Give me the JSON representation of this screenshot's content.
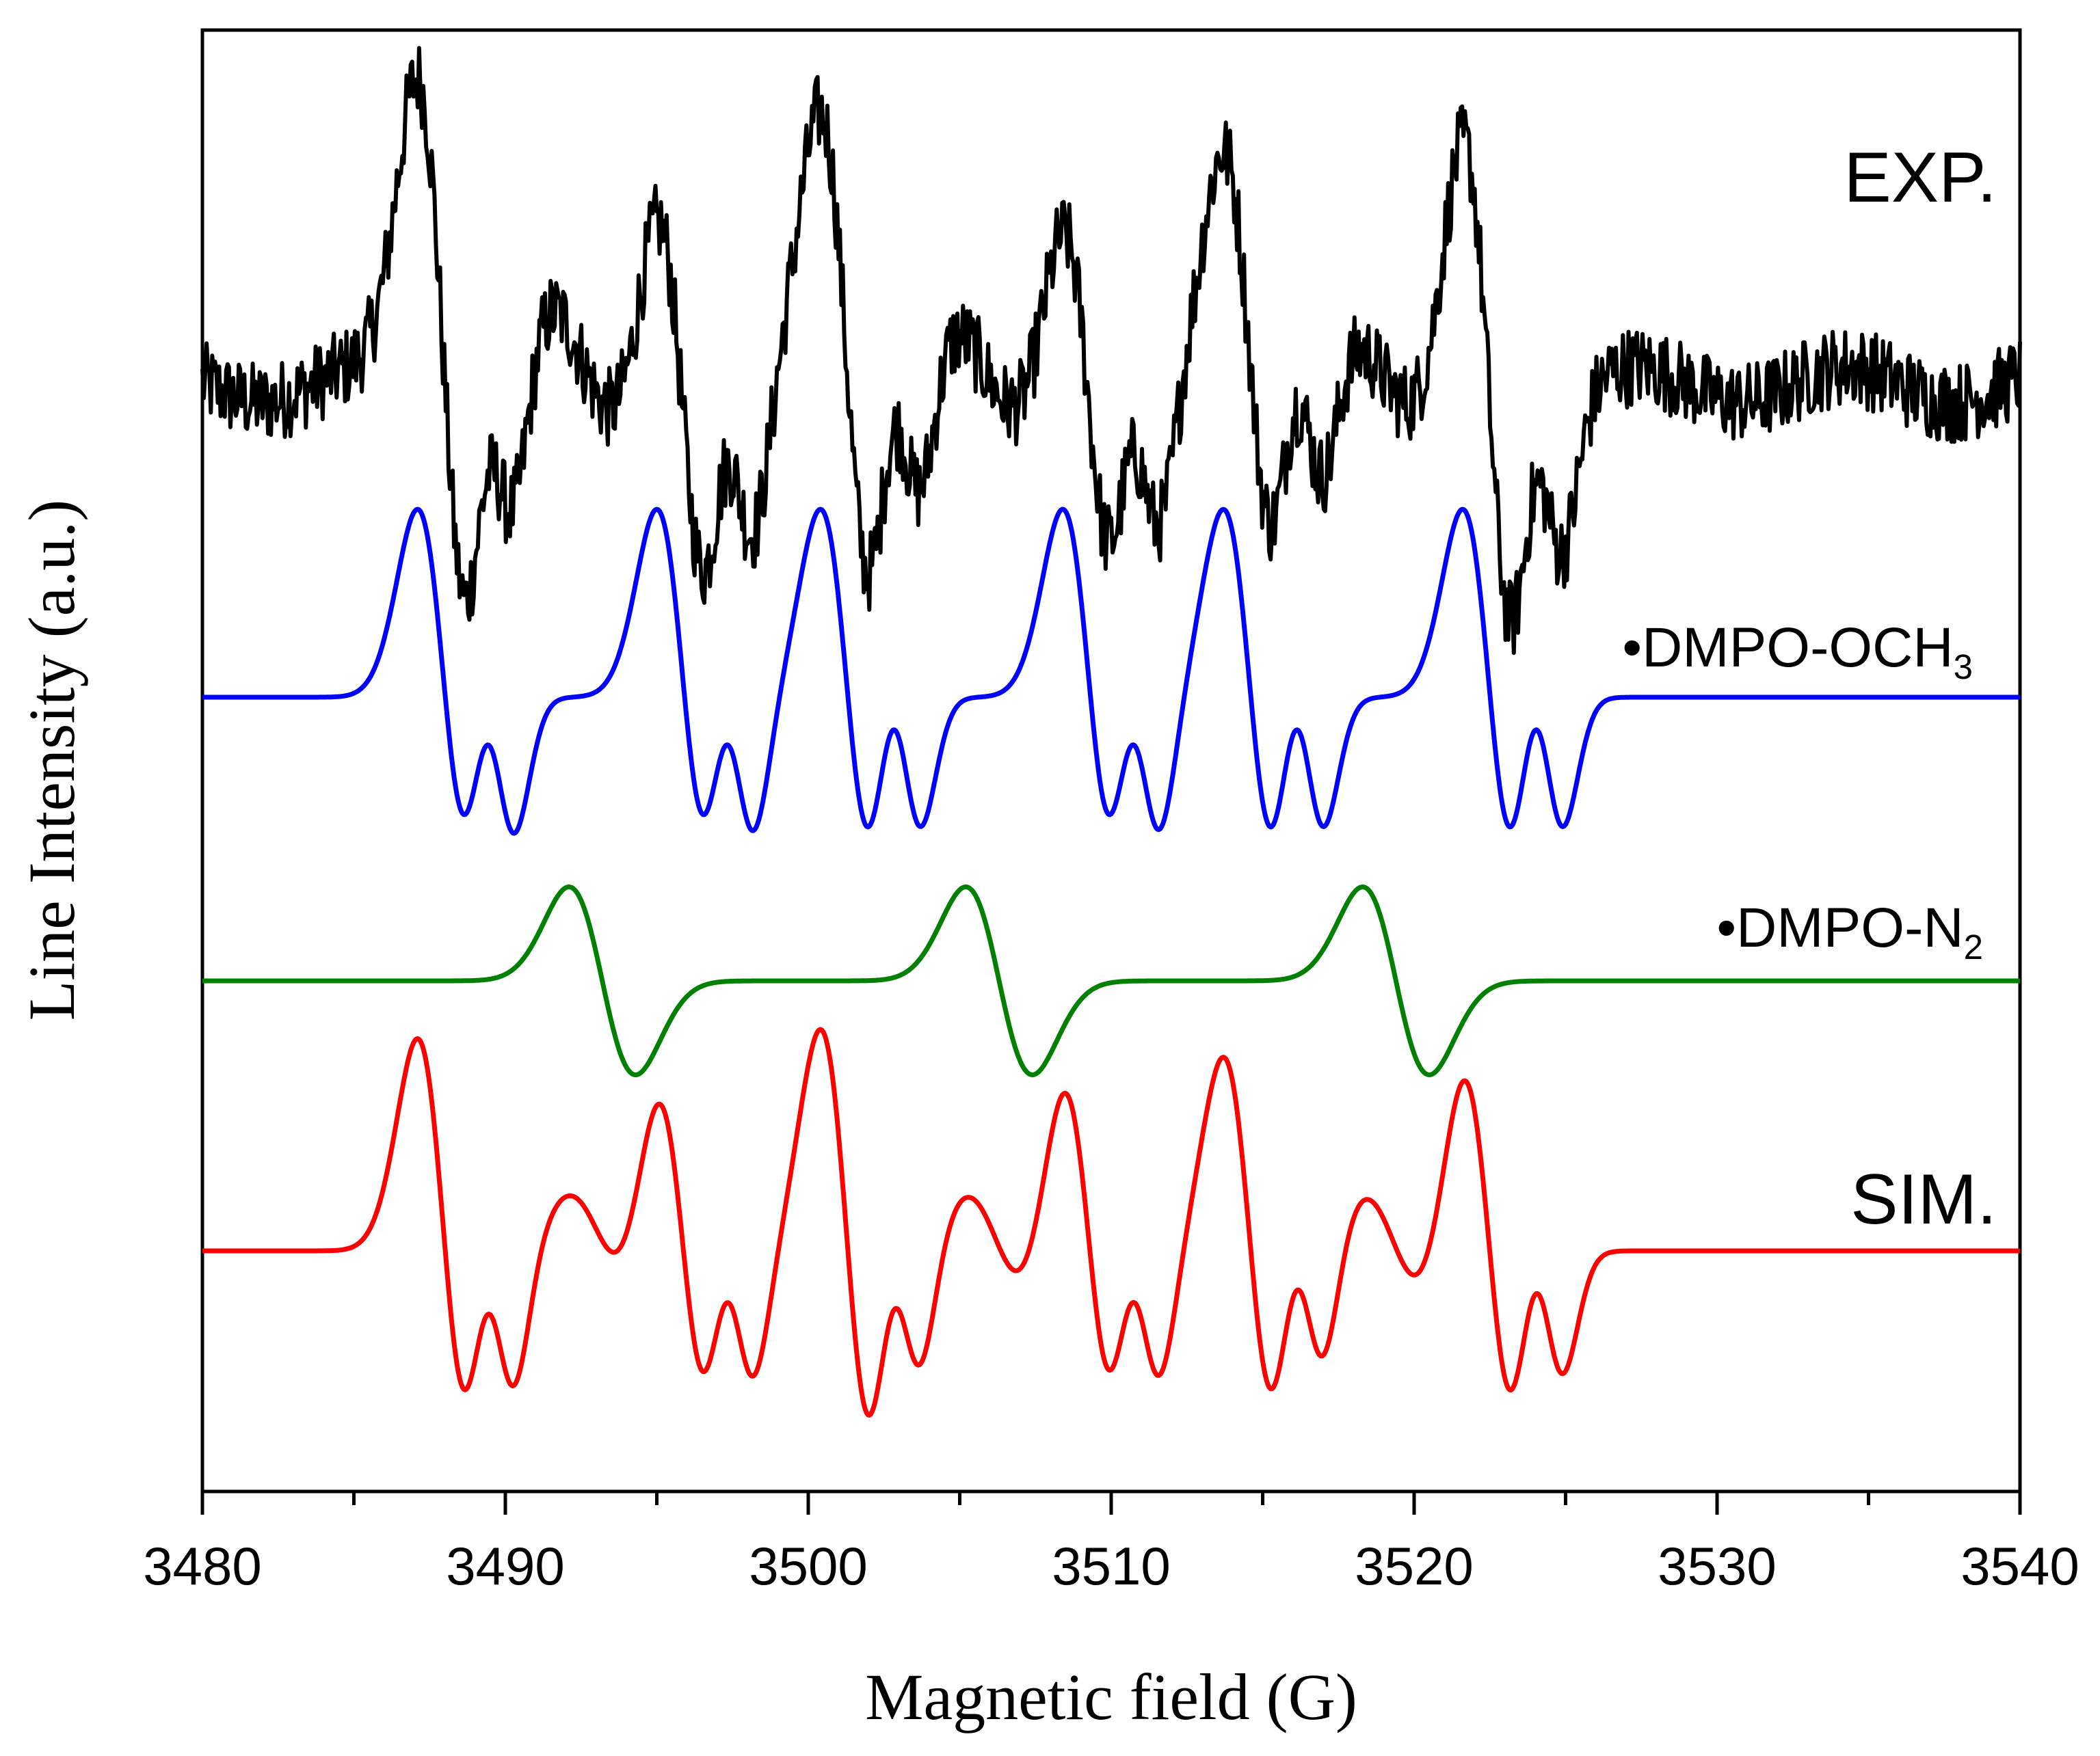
{
  "chart_data": {
    "type": "line",
    "xlabel": "Magnetic field (G)",
    "ylabel": "Line Intensity (a.u.)",
    "xlim": [
      3480,
      3540
    ],
    "x_ticks": [
      3480,
      3490,
      3500,
      3510,
      3520,
      3530,
      3540
    ],
    "x_minor_step": 5,
    "y_ticks_shown": false,
    "grid": false,
    "legend": "none",
    "series": [
      {
        "name": "EXP.",
        "label_bullet": false,
        "color": "#000000",
        "kind": "noisy-derivative",
        "baseline": -0.25,
        "noise_amplitude": 0.18,
        "lines": [
          {
            "center": 3488.0,
            "amplitude": 1.35,
            "width": 0.9
          },
          {
            "center": 3489.8,
            "amplitude": 0.6,
            "width": 0.6
          },
          {
            "center": 3495.9,
            "amplitude": 1.05,
            "width": 0.9
          },
          {
            "center": 3497.7,
            "amplitude": 0.55,
            "width": 0.6
          },
          {
            "center": 3501.3,
            "amplitude": 1.15,
            "width": 0.9
          },
          {
            "center": 3503.2,
            "amplitude": 0.55,
            "width": 0.6
          },
          {
            "center": 3509.3,
            "amplitude": 0.9,
            "width": 0.9
          },
          {
            "center": 3511.1,
            "amplitude": 0.5,
            "width": 0.6
          },
          {
            "center": 3514.6,
            "amplitude": 0.95,
            "width": 0.9
          },
          {
            "center": 3516.5,
            "amplitude": 0.5,
            "width": 0.6
          },
          {
            "center": 3522.5,
            "amplitude": 1.25,
            "width": 0.9
          },
          {
            "center": 3524.4,
            "amplitude": 0.55,
            "width": 0.6
          },
          {
            "center": 3492.6,
            "amplitude": 0.35,
            "width": 1.6
          },
          {
            "center": 3505.8,
            "amplitude": 0.3,
            "width": 1.6
          },
          {
            "center": 3519.0,
            "amplitude": 0.3,
            "width": 1.6
          }
        ]
      },
      {
        "name": "DMPO-OCH",
        "subscript": "3",
        "label_bullet": true,
        "color": "#0000ff",
        "kind": "derivative",
        "lines": [
          {
            "center": 3488.0,
            "amplitude": 1.0,
            "width": 0.9
          },
          {
            "center": 3489.8,
            "amplitude": 0.58,
            "width": 0.6
          },
          {
            "center": 3495.9,
            "amplitude": 1.0,
            "width": 0.9
          },
          {
            "center": 3497.7,
            "amplitude": 0.58,
            "width": 0.6
          },
          {
            "center": 3501.3,
            "amplitude": 1.0,
            "width": 0.9
          },
          {
            "center": 3503.2,
            "amplitude": 0.58,
            "width": 0.6
          },
          {
            "center": 3509.3,
            "amplitude": 1.0,
            "width": 0.9
          },
          {
            "center": 3511.1,
            "amplitude": 0.58,
            "width": 0.6
          },
          {
            "center": 3514.6,
            "amplitude": 1.0,
            "width": 0.9
          },
          {
            "center": 3516.5,
            "amplitude": 0.58,
            "width": 0.6
          },
          {
            "center": 3522.5,
            "amplitude": 1.0,
            "width": 0.9
          },
          {
            "center": 3524.4,
            "amplitude": 0.58,
            "width": 0.6
          }
        ]
      },
      {
        "name": "DMPO-N",
        "subscript": "2",
        "label_bullet": true,
        "color": "#008000",
        "kind": "derivative",
        "lines": [
          {
            "center": 3493.2,
            "amplitude": 0.5,
            "width": 1.1
          },
          {
            "center": 3506.3,
            "amplitude": 0.5,
            "width": 1.1
          },
          {
            "center": 3519.4,
            "amplitude": 0.5,
            "width": 1.1
          }
        ]
      },
      {
        "name": "SIM.",
        "label_bullet": false,
        "color": "#ff0000",
        "kind": "sum-of-above-simulations",
        "lines": [
          {
            "center": 3488.0,
            "amplitude": 1.15,
            "width": 0.9
          },
          {
            "center": 3489.8,
            "amplitude": 0.6,
            "width": 0.6
          },
          {
            "center": 3495.9,
            "amplitude": 1.0,
            "width": 0.9
          },
          {
            "center": 3497.7,
            "amplitude": 0.55,
            "width": 0.6
          },
          {
            "center": 3501.3,
            "amplitude": 1.2,
            "width": 0.9
          },
          {
            "center": 3503.2,
            "amplitude": 0.55,
            "width": 0.6
          },
          {
            "center": 3509.3,
            "amplitude": 1.0,
            "width": 0.9
          },
          {
            "center": 3511.1,
            "amplitude": 0.55,
            "width": 0.6
          },
          {
            "center": 3514.6,
            "amplitude": 1.05,
            "width": 0.9
          },
          {
            "center": 3516.5,
            "amplitude": 0.55,
            "width": 0.6
          },
          {
            "center": 3522.5,
            "amplitude": 1.05,
            "width": 0.9
          },
          {
            "center": 3524.4,
            "amplitude": 0.55,
            "width": 0.6
          },
          {
            "center": 3493.2,
            "amplitude": 0.3,
            "width": 1.1
          },
          {
            "center": 3506.3,
            "amplitude": 0.3,
            "width": 1.1
          },
          {
            "center": 3519.4,
            "amplitude": 0.3,
            "width": 1.1
          }
        ]
      }
    ]
  }
}
